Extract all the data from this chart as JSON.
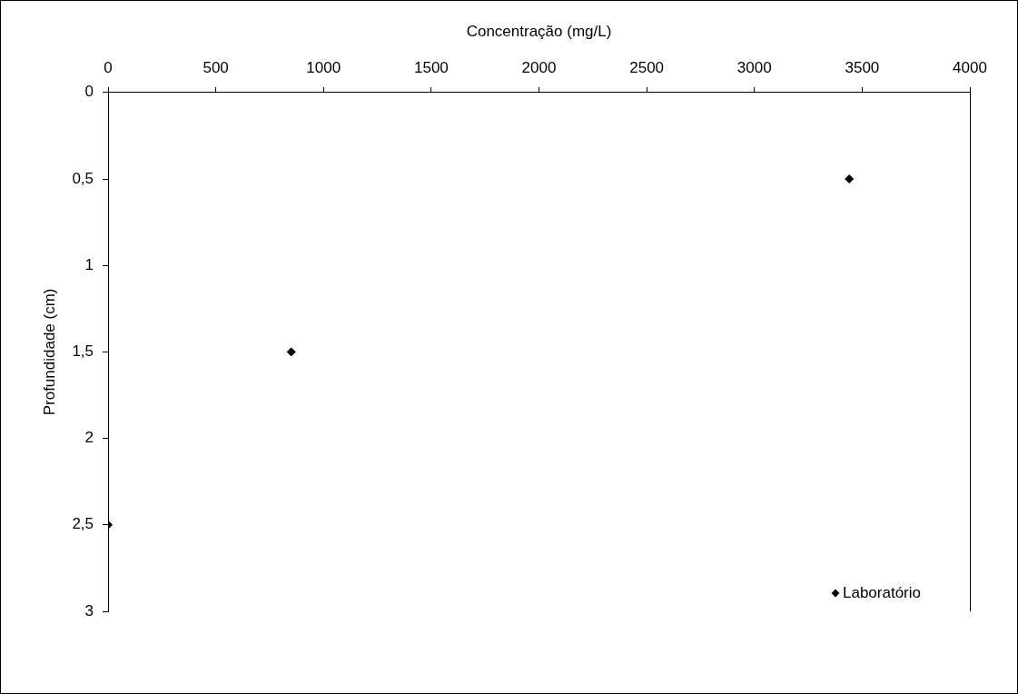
{
  "chart_data": {
    "type": "scatter",
    "xlabel": "Concentração (mg/L)",
    "ylabel": "Profundidade (cm)",
    "series": [
      {
        "name": "Laboratório",
        "color": "#000000",
        "x": [
          3440,
          850,
          0
        ],
        "values": [
          0.5,
          1.5,
          2.5
        ]
      }
    ],
    "xlim": [
      0,
      4000
    ],
    "xticks": [
      0,
      500,
      1000,
      1500,
      2000,
      2500,
      3000,
      3500,
      4000
    ],
    "ylim": [
      3,
      0
    ],
    "yticks": [
      0,
      {
        "value": 0.5,
        "label": "0,5"
      },
      1,
      {
        "value": 1.5,
        "label": "1,5"
      },
      2,
      {
        "value": 2.5,
        "label": "2,5"
      },
      3
    ],
    "grid": false,
    "legend": "bottom right",
    "marker": "diamond"
  }
}
